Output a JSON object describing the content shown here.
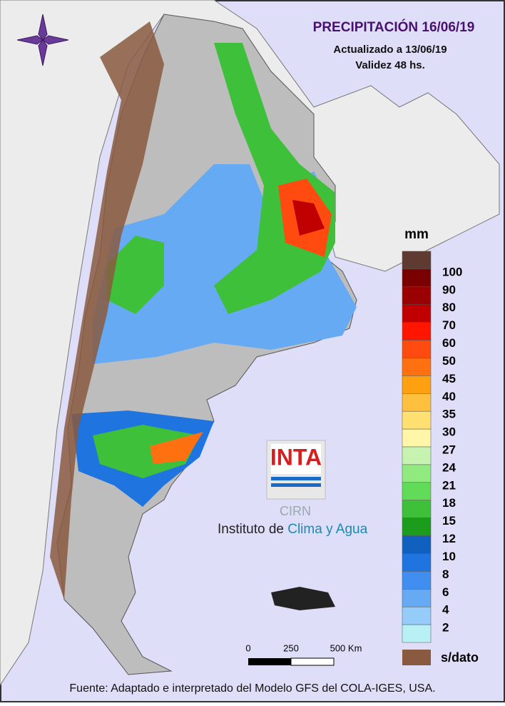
{
  "header": {
    "title": "PRECIPITACIÓN 16/06/19",
    "updated": "Actualizado a 13/06/19",
    "validity": "Validez 48 hs."
  },
  "legend": {
    "unit": "mm",
    "levels": [
      100,
      90,
      80,
      70,
      60,
      50,
      45,
      40,
      35,
      30,
      27,
      24,
      21,
      18,
      15,
      12,
      10,
      8,
      6,
      4,
      2
    ],
    "colors": [
      "#5e3a30",
      "#7a0000",
      "#9a0000",
      "#c00000",
      "#ff1500",
      "#ff4a10",
      "#ff7010",
      "#ffa010",
      "#ffc040",
      "#ffe070",
      "#fff6aa",
      "#c6f4b0",
      "#90ea80",
      "#62dc58",
      "#3ec03a",
      "#1c9c1c",
      "#1060c0",
      "#1f74e0",
      "#3f8ef0",
      "#66aaf4",
      "#96ccfa",
      "#b8f0f6"
    ],
    "no_data": "s/dato"
  },
  "scale_bar": {
    "labels": [
      "0",
      "250",
      "500 Km"
    ]
  },
  "logo": {
    "brand": "INTA",
    "unit": "CIRN",
    "institute_a": "Instituto de ",
    "institute_b": "Clima y Agua"
  },
  "footer": "Fuente: Adaptado e interpretado del Modelo GFS del COLA-IGES, USA."
}
